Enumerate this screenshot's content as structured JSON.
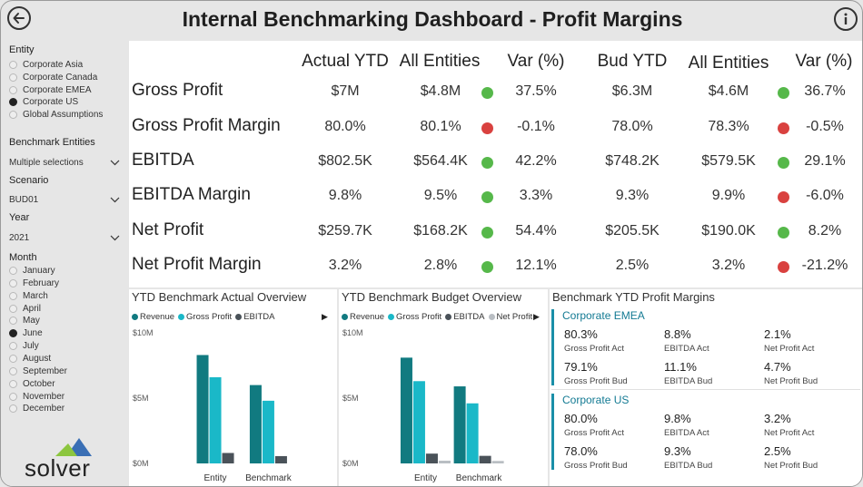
{
  "header": {
    "title": "Internal Benchmarking Dashboard - Profit Margins"
  },
  "sidebar": {
    "entity_label": "Entity",
    "entities": [
      {
        "label": "Corporate Asia",
        "selected": false
      },
      {
        "label": "Corporate Canada",
        "selected": false
      },
      {
        "label": "Corporate EMEA",
        "selected": false
      },
      {
        "label": "Corporate US",
        "selected": true
      },
      {
        "label": "Global Assumptions",
        "selected": false
      }
    ],
    "benchmark_label": "Benchmark Entities",
    "benchmark_value": "Multiple selections",
    "scenario_label": "Scenario",
    "scenario_value": "BUD01",
    "year_label": "Year",
    "year_value": "2021",
    "month_label": "Month",
    "months": [
      {
        "label": "January",
        "selected": false
      },
      {
        "label": "February",
        "selected": false
      },
      {
        "label": "March",
        "selected": false
      },
      {
        "label": "April",
        "selected": false
      },
      {
        "label": "May",
        "selected": false
      },
      {
        "label": "June",
        "selected": true
      },
      {
        "label": "July",
        "selected": false
      },
      {
        "label": "August",
        "selected": false
      },
      {
        "label": "September",
        "selected": false
      },
      {
        "label": "October",
        "selected": false
      },
      {
        "label": "November",
        "selected": false
      },
      {
        "label": "December",
        "selected": false
      }
    ],
    "logo_text": "solver"
  },
  "kpi": {
    "headers": [
      "Actual YTD",
      "All Entities",
      "Var (%)",
      "Bud YTD",
      "All Entities",
      "Var (%)"
    ],
    "rows": [
      {
        "label": "Gross Profit",
        "actual": "$7M",
        "all_act": "$4.8M",
        "act_status": "good",
        "act_var": "37.5%",
        "bud": "$6.3M",
        "all_bud": "$4.6M",
        "bud_status": "good",
        "bud_var": "36.7%"
      },
      {
        "label": "Gross Profit Margin",
        "actual": "80.0%",
        "all_act": "80.1%",
        "act_status": "bad",
        "act_var": "-0.1%",
        "bud": "78.0%",
        "all_bud": "78.3%",
        "bud_status": "bad",
        "bud_var": "-0.5%"
      },
      {
        "label": "EBITDA",
        "actual": "$802.5K",
        "all_act": "$564.4K",
        "act_status": "good",
        "act_var": "42.2%",
        "bud": "$748.2K",
        "all_bud": "$579.5K",
        "bud_status": "good",
        "bud_var": "29.1%"
      },
      {
        "label": "EBITDA Margin",
        "actual": "9.8%",
        "all_act": "9.5%",
        "act_status": "good",
        "act_var": "3.3%",
        "bud": "9.3%",
        "all_bud": "9.9%",
        "bud_status": "bad",
        "bud_var": "-6.0%"
      },
      {
        "label": "Net Profit",
        "actual": "$259.7K",
        "all_act": "$168.2K",
        "act_status": "good",
        "act_var": "54.4%",
        "bud": "$205.5K",
        "all_bud": "$190.0K",
        "bud_status": "good",
        "bud_var": "8.2%"
      },
      {
        "label": "Net Profit Margin",
        "actual": "3.2%",
        "all_act": "2.8%",
        "act_status": "good",
        "act_var": "12.1%",
        "bud": "2.5%",
        "all_bud": "3.2%",
        "bud_status": "bad",
        "bud_var": "-21.2%"
      }
    ],
    "colors": {
      "good": "#56b84a",
      "bad": "#d9413f"
    }
  },
  "chart_data": [
    {
      "type": "bar",
      "title": "YTD Benchmark Actual Overview",
      "categories": [
        "Entity",
        "Benchmark"
      ],
      "series": [
        {
          "name": "Revenue",
          "color": "#117a80",
          "values": [
            8.3,
            6.0
          ]
        },
        {
          "name": "Gross Profit",
          "color": "#1ab8c8",
          "values": [
            6.6,
            4.8
          ]
        },
        {
          "name": "EBITDA",
          "color": "#4a5259",
          "values": [
            0.8,
            0.56
          ]
        }
      ],
      "ylim": [
        0,
        10
      ],
      "yticks": [
        "$0M",
        "$5M",
        "$10M"
      ],
      "legend": "top-left"
    },
    {
      "type": "bar",
      "title": "YTD Benchmark Budget Overview",
      "categories": [
        "Entity",
        "Benchmark"
      ],
      "series": [
        {
          "name": "Revenue",
          "color": "#117a80",
          "values": [
            8.1,
            5.9
          ]
        },
        {
          "name": "Gross Profit",
          "color": "#1ab8c8",
          "values": [
            6.3,
            4.6
          ]
        },
        {
          "name": "EBITDA",
          "color": "#4a5259",
          "values": [
            0.75,
            0.58
          ]
        },
        {
          "name": "Net Profit",
          "color": "#b9bec3",
          "values": [
            0.21,
            0.19
          ]
        }
      ],
      "ylim": [
        0,
        10
      ],
      "yticks": [
        "$0M",
        "$5M",
        "$10M"
      ],
      "legend": "top-left"
    }
  ],
  "margins": {
    "title": "Benchmark YTD Profit Margins",
    "groups": [
      {
        "name": "Corporate EMEA",
        "act": [
          {
            "v": "80.3%",
            "c": "Gross Profit Act"
          },
          {
            "v": "8.8%",
            "c": "EBITDA Act"
          },
          {
            "v": "2.1%",
            "c": "Net Profit Act"
          }
        ],
        "bud": [
          {
            "v": "79.1%",
            "c": "Gross Profit Bud"
          },
          {
            "v": "11.1%",
            "c": "EBITDA Bud"
          },
          {
            "v": "4.7%",
            "c": "Net Profit Bud"
          }
        ]
      },
      {
        "name": "Corporate US",
        "act": [
          {
            "v": "80.0%",
            "c": "Gross Profit Act"
          },
          {
            "v": "9.8%",
            "c": "EBITDA Act"
          },
          {
            "v": "3.2%",
            "c": "Net Profit Act"
          }
        ],
        "bud": [
          {
            "v": "78.0%",
            "c": "Gross Profit Bud"
          },
          {
            "v": "9.3%",
            "c": "EBITDA Bud"
          },
          {
            "v": "2.5%",
            "c": "Net Profit Bud"
          }
        ]
      }
    ]
  }
}
